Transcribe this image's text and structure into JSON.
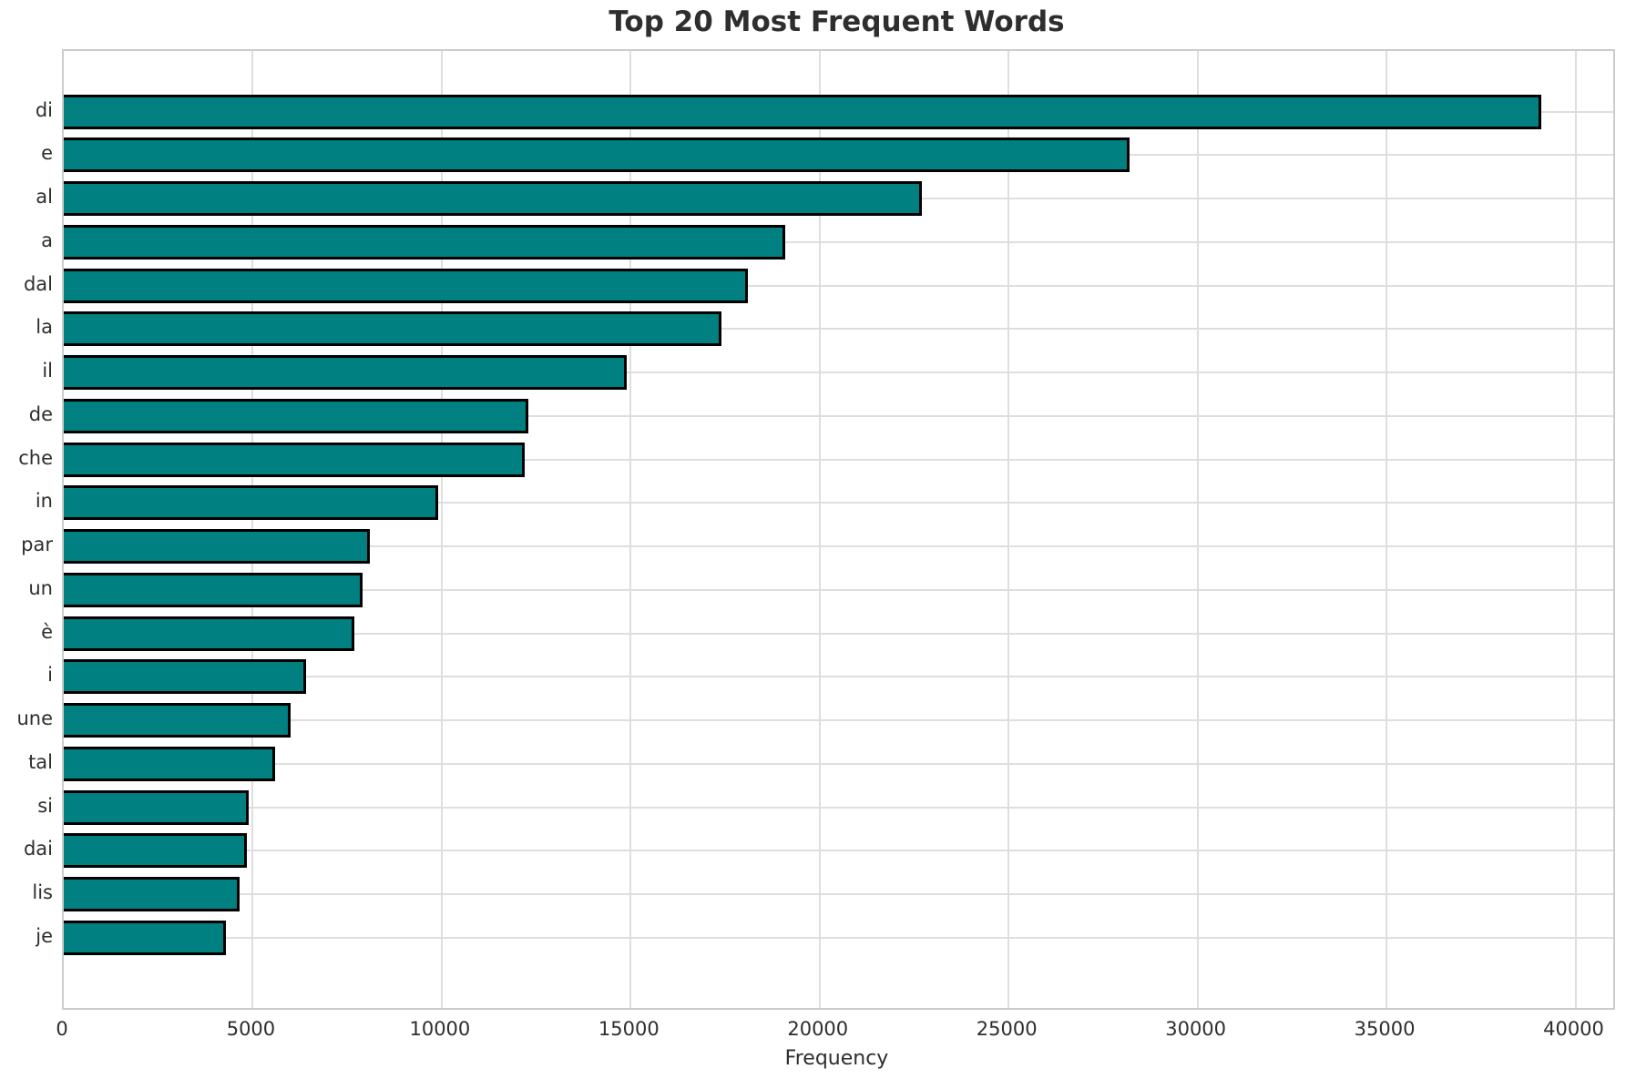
{
  "title": "Top 20 Most Frequent Words",
  "chart_data": {
    "type": "bar",
    "orientation": "horizontal",
    "title": "Top 20 Most Frequent Words",
    "xlabel": "Frequency",
    "ylabel": "",
    "categories": [
      "di",
      "e",
      "al",
      "a",
      "dal",
      "la",
      "il",
      "de",
      "che",
      "in",
      "par",
      "un",
      "è",
      "i",
      "une",
      "tal",
      "si",
      "dai",
      "lis",
      "je"
    ],
    "values": [
      39100,
      28200,
      22700,
      19100,
      18100,
      17400,
      14900,
      12300,
      12200,
      9900,
      8100,
      7900,
      7700,
      6400,
      6000,
      5600,
      4900,
      4850,
      4650,
      4300
    ],
    "xlim": [
      0,
      41000
    ],
    "xticks": [
      0,
      5000,
      10000,
      15000,
      20000,
      25000,
      30000,
      35000,
      40000
    ],
    "xtick_labels": [
      "0",
      "5000",
      "10000",
      "15000",
      "20000",
      "25000",
      "30000",
      "35000",
      "40000"
    ],
    "grid": true,
    "legend": "none",
    "bar_color": "#008080",
    "bar_edge_color": "#000000",
    "grid_color": "#dedede",
    "spine_color": "#cccccc",
    "text_color": "#2e2e2e",
    "background_color": "#ffffff"
  }
}
